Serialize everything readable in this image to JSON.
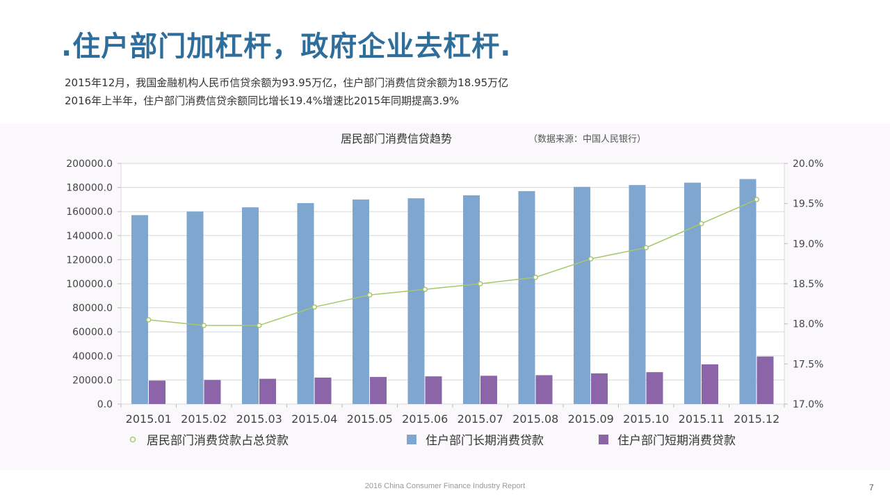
{
  "slide": {
    "title": ".住户部门加杠杆，政府企业去杠杆.",
    "subtitle_line1": "2015年12月，我国金融机构人民币信贷余额为93.95万亿，住户部门消费信贷余额为18.95万亿",
    "subtitle_line2": "2016年上半年，住户部门消费信贷余额同比增长19.4%增速比2015年同期提高3.9%",
    "footer": "2016 China Consumer Finance Industry Report",
    "page_number": "7"
  },
  "colors": {
    "title": "#2f6d9a",
    "long_term": "#7ea6cf",
    "short_term": "#8c64a8",
    "ratio_line": "#a6c86a",
    "panel_bg": "#faf8fb",
    "grid": "#d9d9d9"
  },
  "chart_data": {
    "type": "bar",
    "title": "居民部门消费信贷趋势",
    "source_note": "（数据来源：中国人民银行）",
    "categories": [
      "2015.01",
      "2015.02",
      "2015.03",
      "2015.04",
      "2015.05",
      "2015.06",
      "2015.07",
      "2015.08",
      "2015.09",
      "2015.10",
      "2015.11",
      "2015.12"
    ],
    "series": [
      {
        "name": "住户部门长期消费贷款",
        "kind": "bar",
        "axis": "left",
        "values": [
          157000,
          160000,
          163500,
          167000,
          170000,
          171000,
          173500,
          177000,
          180500,
          182000,
          184000,
          187000
        ]
      },
      {
        "name": "住户部门短期消费贷款",
        "kind": "bar",
        "axis": "left",
        "values": [
          19500,
          20000,
          21000,
          22000,
          22500,
          23000,
          23500,
          24000,
          25500,
          26500,
          33000,
          39500
        ]
      },
      {
        "name": "居民部门消费贷款占总贷款",
        "kind": "line",
        "axis": "right",
        "values": [
          18.05,
          17.98,
          17.98,
          18.21,
          18.36,
          18.43,
          18.5,
          18.58,
          18.81,
          18.95,
          19.25,
          19.55
        ]
      }
    ],
    "legend": [
      "居民部门消费贷款占总贷款",
      "住户部门长期消费贷款",
      "住户部门短期消费贷款"
    ],
    "ylim_left": [
      0,
      200000
    ],
    "yticks_left": [
      "0.0",
      "20000.0",
      "40000.0",
      "60000.0",
      "80000.0",
      "100000.0",
      "120000.0",
      "140000.0",
      "160000.0",
      "180000.0",
      "200000.0"
    ],
    "ylim_right": [
      17.0,
      20.0
    ],
    "yticks_right": [
      "17.0%",
      "17.5%",
      "18.0%",
      "18.5%",
      "19.0%",
      "19.5%",
      "20.0%"
    ],
    "grid": true,
    "legend_position": "bottom"
  }
}
